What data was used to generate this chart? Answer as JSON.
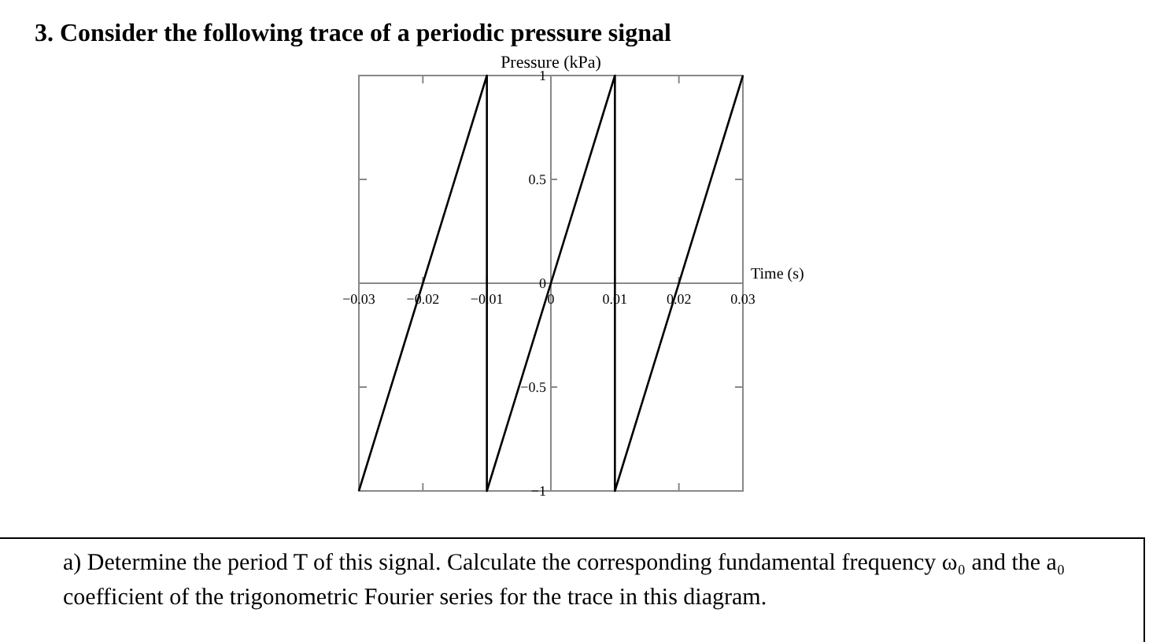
{
  "chart_data": {
    "type": "line",
    "title": "3. Consider the following trace of a periodic pressure signal",
    "xlabel": "Time (s)",
    "ylabel": "Pressure (kPa)",
    "x": [
      -0.03,
      -0.01,
      -0.01,
      0.01,
      0.01,
      0.03
    ],
    "series": [
      {
        "color": "#000000",
        "values": [
          -1,
          1,
          -1,
          1,
          -1,
          1
        ]
      }
    ],
    "xlim": [
      -0.03,
      0.03
    ],
    "xticks": [
      {
        "value": -0.03,
        "label": "−0.03"
      },
      {
        "value": -0.02,
        "label": "−0.02"
      },
      {
        "value": -0.01,
        "label": "−0.01"
      },
      {
        "value": 0,
        "label": "0"
      },
      {
        "value": 0.01,
        "label": "0.01"
      },
      {
        "value": 0.02,
        "label": "0.02"
      },
      {
        "value": 0.03,
        "label": "0.03"
      }
    ],
    "ylim": [
      -1,
      1
    ],
    "yticks": [
      {
        "value": -1,
        "label": "−1"
      },
      {
        "value": -0.5,
        "label": "−0.5"
      },
      {
        "value": 0,
        "label": "0"
      },
      {
        "value": 0.5,
        "label": "0.5"
      },
      {
        "value": 1,
        "label": "1"
      }
    ],
    "grid": false,
    "marker": "none",
    "line_style": "solid",
    "annotations": [
      "a) Determine the period T of this signal. Calculate the corresponding fundamental frequency ω₀ and the a₀ coefficient of the trigonometric Fourier series for the trace in this diagram."
    ]
  }
}
